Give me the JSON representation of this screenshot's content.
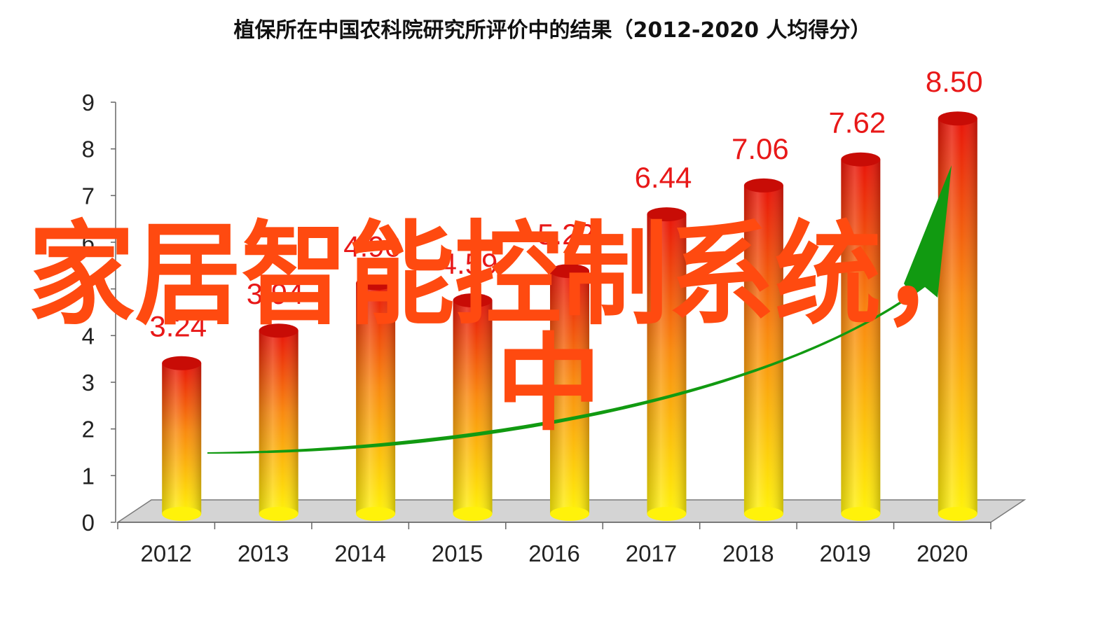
{
  "chart_data": {
    "type": "bar",
    "title": "植保所在中国农科院研究所评价中的结果（2012-2020  人均得分）",
    "categories": [
      "2012",
      "2013",
      "2014",
      "2015",
      "2016",
      "2017",
      "2018",
      "2019",
      "2020"
    ],
    "values": [
      3.24,
      3.94,
      4.96,
      4.59,
      5.22,
      6.44,
      7.06,
      7.62,
      8.5
    ],
    "data_labels": [
      "3.24",
      "3.94",
      "4.96",
      "4.59",
      "5.22",
      "6.44",
      "7.06",
      "7.62",
      "8.50"
    ],
    "ylim": [
      0,
      9
    ],
    "yticks": [
      "0",
      "1",
      "2",
      "3",
      "4",
      "5",
      "6",
      "7",
      "8",
      "9"
    ],
    "xlabel": "",
    "ylabel": "",
    "grid": false,
    "legend": "none",
    "style": "3d-cylinder",
    "trend_arrow": "up",
    "colors": {
      "bar_top": "#e8140a",
      "bar_mid": "#f98a10",
      "bar_bottom": "#fff20a",
      "data_label": "#e81818",
      "arrow": "#119a11",
      "overlay_text": "#ff4a10"
    }
  },
  "overlay": {
    "line1": "家居智能控制系统，",
    "line2": "中"
  }
}
